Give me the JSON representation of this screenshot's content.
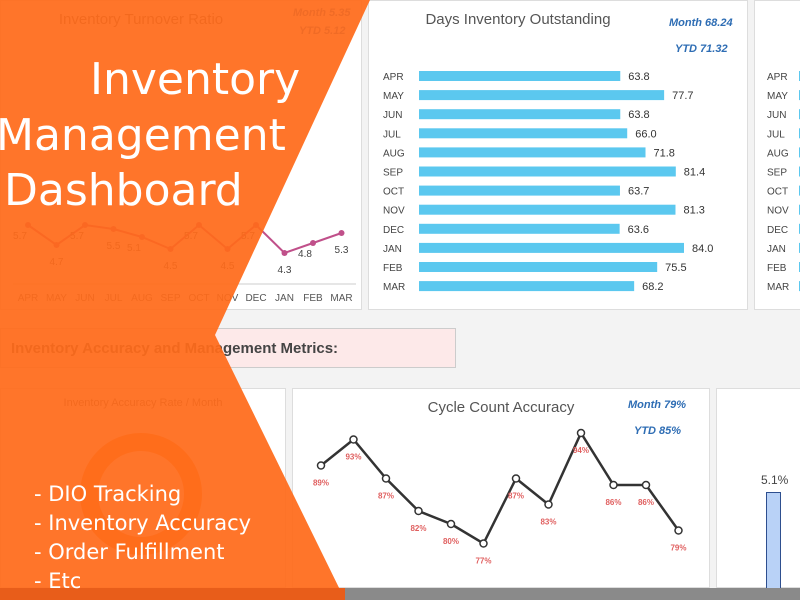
{
  "hero": {
    "title_lines": [
      "Inventory",
      "Management",
      "Dashboard"
    ],
    "bullets": [
      "- DIO Tracking",
      "- Inventory Accuracy",
      "- Order Fulfillment",
      "- Etc"
    ]
  },
  "colors": {
    "overlay": "#ff6b1a",
    "bar": "#5bc8ef",
    "line": "#333333",
    "label_red": "#e06060",
    "kpi": "#2e6db4",
    "turnover_line": "#c0508a"
  },
  "turnover": {
    "title": "Inventory Turnover Ratio",
    "month": "Month 5.35",
    "ytd": "YTD 5.12",
    "chart_data": {
      "type": "line",
      "categories": [
        "APR",
        "MAY",
        "JUN",
        "JUL",
        "AUG",
        "SEP",
        "OCT",
        "NOV",
        "DEC",
        "JAN",
        "FEB",
        "MAR"
      ],
      "values": [
        5.7,
        4.7,
        5.7,
        5.5,
        5.1,
        4.5,
        5.7,
        4.5,
        5.7,
        4.3,
        4.8,
        5.3
      ]
    }
  },
  "dio": {
    "title": "Days Inventory Outstanding",
    "month": "Month 68.24",
    "ytd": "YTD 71.32",
    "chart_data": {
      "type": "bar",
      "orientation": "horizontal",
      "categories": [
        "APR",
        "MAY",
        "JUN",
        "JUL",
        "AUG",
        "SEP",
        "OCT",
        "NOV",
        "DEC",
        "JAN",
        "FEB",
        "MAR"
      ],
      "values": [
        63.8,
        77.7,
        63.8,
        66.0,
        71.8,
        81.4,
        63.7,
        81.3,
        63.6,
        84.0,
        75.5,
        68.2
      ]
    }
  },
  "right_panel": {
    "categories": [
      "APR",
      "MAY",
      "JUN",
      "JUL",
      "AUG",
      "SEP",
      "OCT",
      "NOV",
      "DEC",
      "JAN",
      "FEB",
      "MAR"
    ]
  },
  "section": {
    "title": "Inventory Accuracy and Management Metrics:"
  },
  "accuracy": {
    "title": "Inventory Accuracy Rate / Month"
  },
  "cycle": {
    "title": "Cycle Count Accuracy",
    "month": "Month 79%",
    "ytd": "YTD 85%",
    "chart_data": {
      "type": "line",
      "values": [
        89,
        93,
        87,
        82,
        80,
        77,
        87,
        83,
        94,
        86,
        86,
        79
      ],
      "labels": [
        "89%",
        "93%",
        "87%",
        "82%",
        "80%",
        "77%",
        "87%",
        "83%",
        "94%",
        "86%",
        "86%",
        "79%"
      ]
    }
  },
  "small_bar": {
    "label": "5.1%"
  }
}
